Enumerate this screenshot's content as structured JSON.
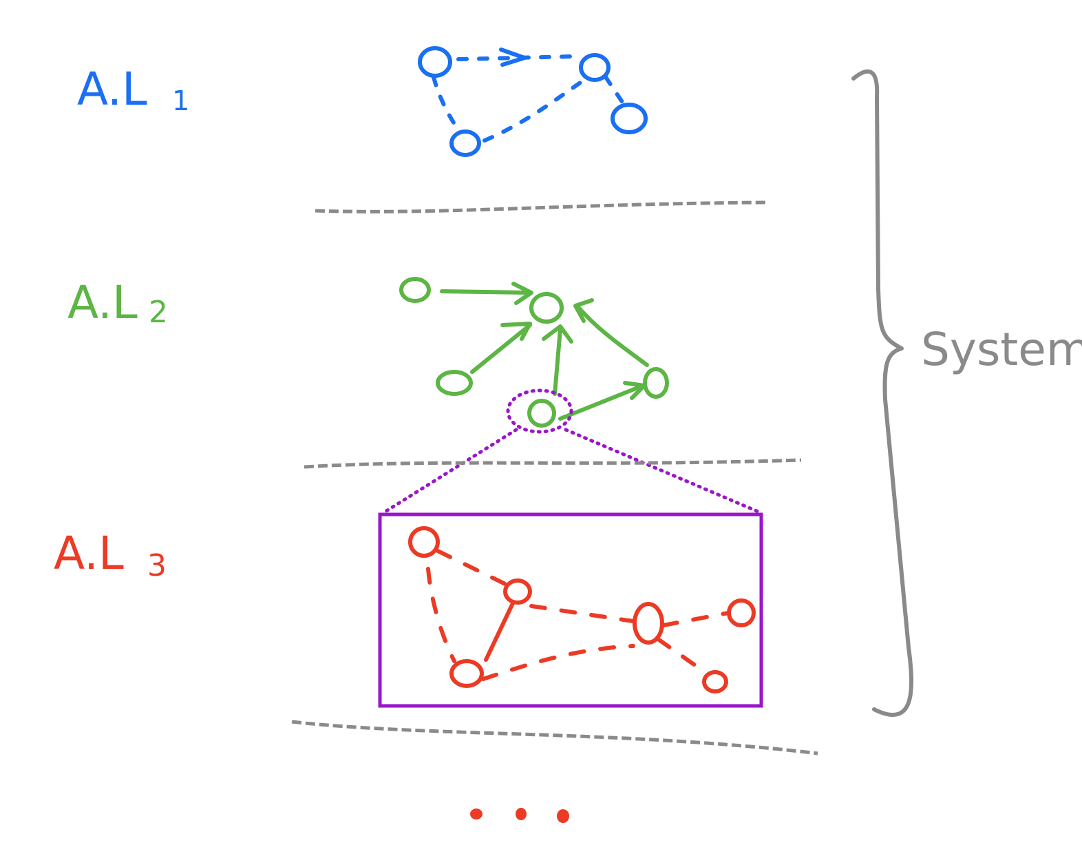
{
  "colors": {
    "level1": "#1a6ff2",
    "level2": "#5cb544",
    "level3": "#ec3a24",
    "zoom": "#9a16c8",
    "divider": "#8a8a8a",
    "brace": "#8a8a8a"
  },
  "levels": [
    {
      "label_main": "A.L",
      "label_sub": "1"
    },
    {
      "label_main": "A.L",
      "label_sub": "2"
    },
    {
      "label_main": "A.L",
      "label_sub": "3"
    }
  ],
  "brace_label": "System",
  "continuation": "..."
}
